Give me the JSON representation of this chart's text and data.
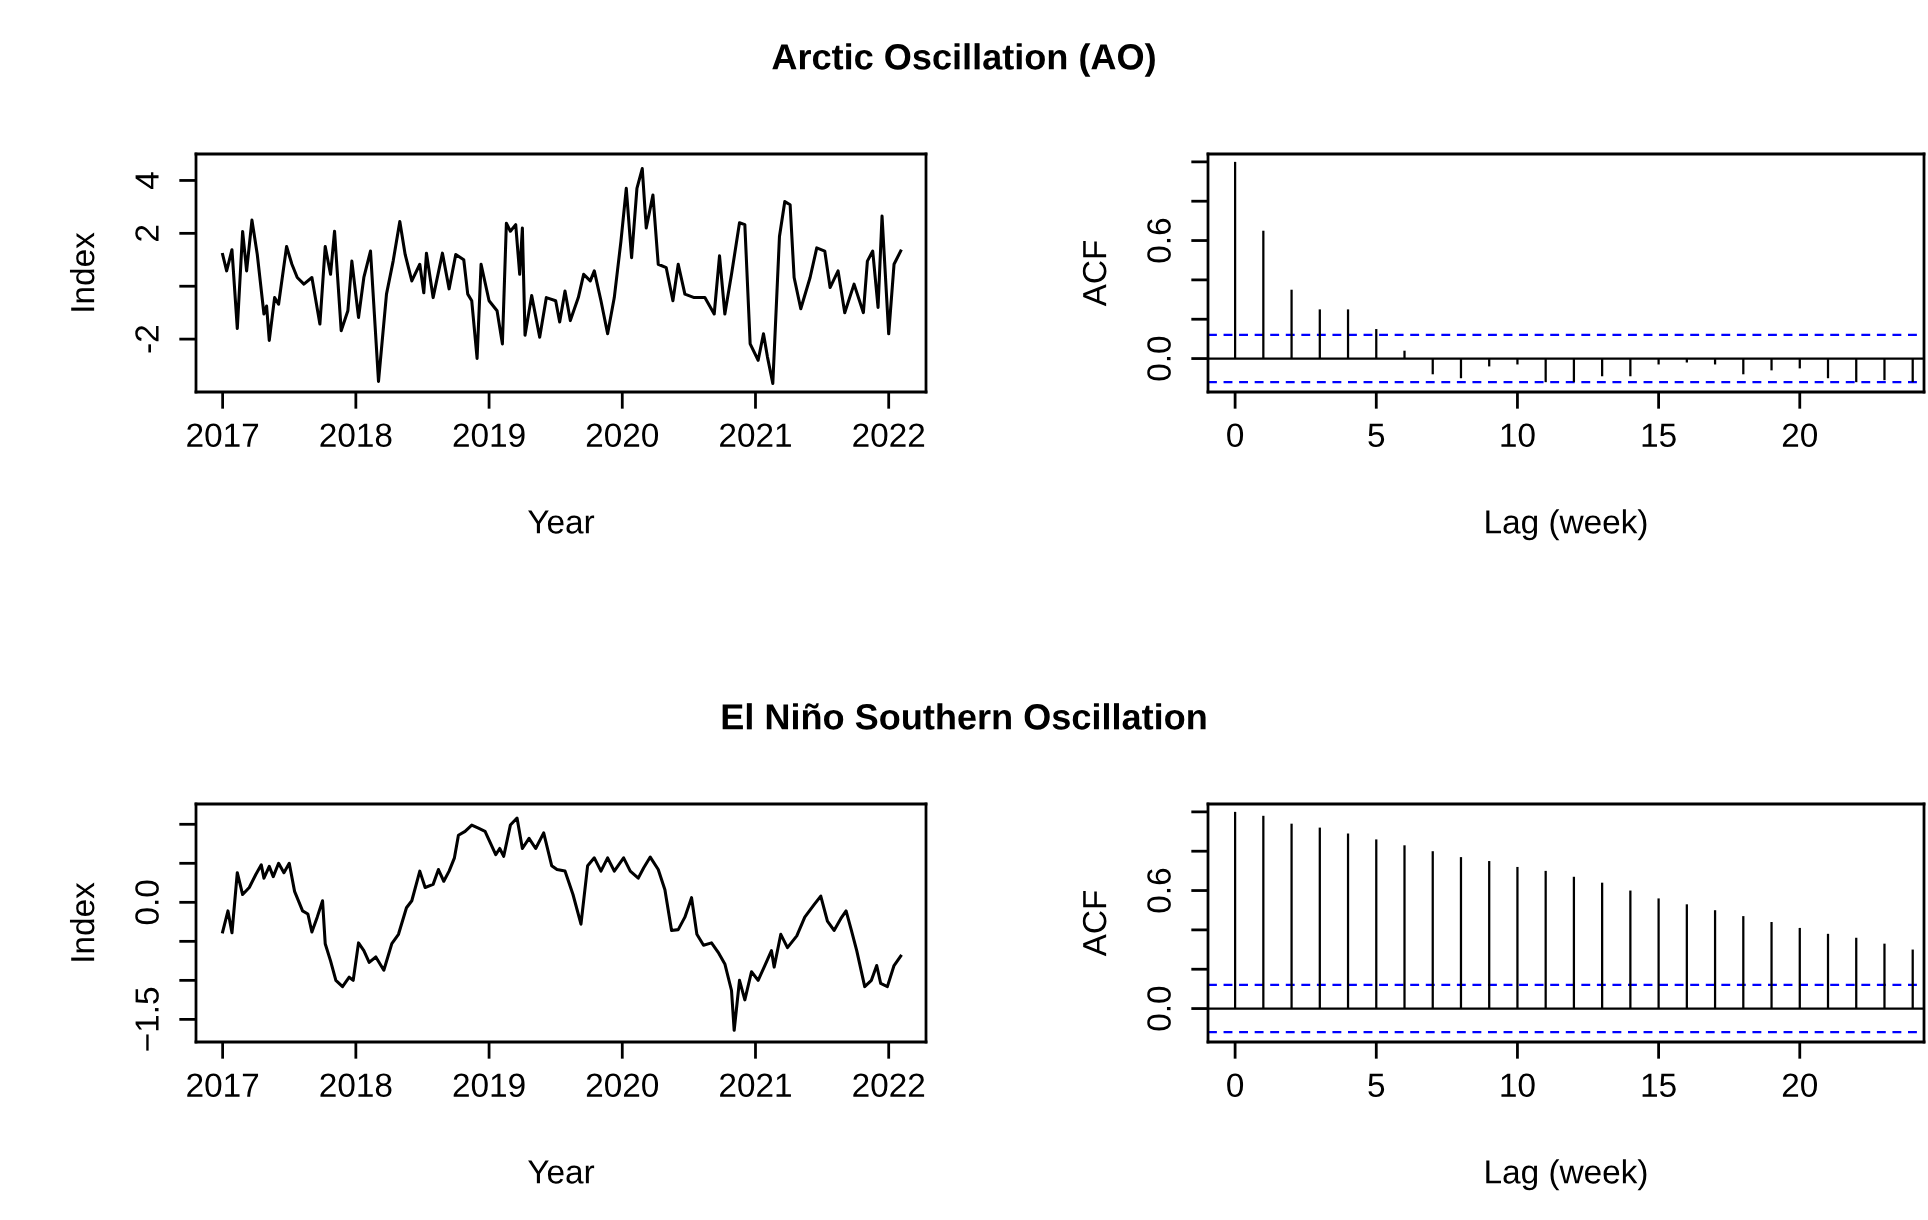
{
  "chart_data": [
    {
      "type": "line",
      "title": "Arctic Oscillation (AO)",
      "xlabel": "Year",
      "ylabel": "Index",
      "color": "#000000",
      "x": [
        2017.0,
        2017.03,
        2017.07,
        2017.11,
        2017.15,
        2017.18,
        2017.22,
        2017.26,
        2017.31,
        2017.33,
        2017.35,
        2017.39,
        2017.42,
        2017.48,
        2017.52,
        2017.56,
        2017.61,
        2017.67,
        2017.73,
        2017.77,
        2017.81,
        2017.84,
        2017.89,
        2017.94,
        2017.97,
        2018.02,
        2018.06,
        2018.11,
        2018.17,
        2018.23,
        2018.28,
        2018.33,
        2018.37,
        2018.42,
        2018.48,
        2018.51,
        2018.53,
        2018.58,
        2018.65,
        2018.7,
        2018.75,
        2018.81,
        2018.84,
        2018.87,
        2018.91,
        2018.94,
        2019.0,
        2019.06,
        2019.1,
        2019.13,
        2019.16,
        2019.2,
        2019.23,
        2019.25,
        2019.27,
        2019.32,
        2019.38,
        2019.43,
        2019.5,
        2019.53,
        2019.57,
        2019.61,
        2019.67,
        2019.71,
        2019.76,
        2019.79,
        2019.84,
        2019.89,
        2019.94,
        2019.99,
        2020.03,
        2020.07,
        2020.11,
        2020.15,
        2020.18,
        2020.23,
        2020.27,
        2020.33,
        2020.38,
        2020.42,
        2020.47,
        2020.54,
        2020.62,
        2020.69,
        2020.73,
        2020.77,
        2020.82,
        2020.88,
        2020.92,
        2020.96,
        2021.02,
        2021.06,
        2021.09,
        2021.13,
        2021.18,
        2021.22,
        2021.26,
        2021.29,
        2021.34,
        2021.41,
        2021.46,
        2021.52,
        2021.56,
        2021.62,
        2021.67,
        2021.74,
        2021.81,
        2021.84,
        2021.88,
        2021.92,
        2021.95,
        2022.0,
        2022.04,
        2022.09
      ],
      "values": [
        1.2,
        0.58,
        1.38,
        -1.6,
        2.07,
        0.58,
        2.5,
        1.2,
        -1.05,
        -0.75,
        -2.05,
        -0.43,
        -0.68,
        1.5,
        0.83,
        0.33,
        0.08,
        0.33,
        -1.43,
        1.5,
        0.45,
        2.08,
        -1.68,
        -0.93,
        0.95,
        -1.18,
        0.33,
        1.33,
        -3.6,
        -0.3,
        0.95,
        2.45,
        1.2,
        0.2,
        0.83,
        -0.25,
        1.25,
        -0.43,
        1.25,
        -0.1,
        1.2,
        1.0,
        -0.3,
        -0.55,
        -2.73,
        0.83,
        -0.55,
        -0.93,
        -2.18,
        2.38,
        2.08,
        2.33,
        0.45,
        2.2,
        -1.85,
        -0.35,
        -1.93,
        -0.43,
        -0.55,
        -1.35,
        -0.18,
        -1.3,
        -0.43,
        0.45,
        0.2,
        0.58,
        -0.55,
        -1.8,
        -0.43,
        1.7,
        3.7,
        1.08,
        3.7,
        4.45,
        2.2,
        3.45,
        0.83,
        0.7,
        -0.55,
        0.83,
        -0.3,
        -0.43,
        -0.43,
        -1.05,
        1.15,
        -1.05,
        0.45,
        2.4,
        2.33,
        -2.18,
        -2.8,
        -1.8,
        -2.68,
        -3.68,
        1.88,
        3.2,
        3.08,
        0.33,
        -0.85,
        0.33,
        1.45,
        1.33,
        -0.05,
        0.58,
        -1.0,
        0.08,
        -1.0,
        0.95,
        1.33,
        -0.8,
        2.65,
        -1.8,
        0.83,
        1.33
      ],
      "xlim": [
        2016.8,
        2022.28
      ],
      "ylim": [
        -4.0,
        5.0
      ],
      "xticks": [
        2017,
        2018,
        2019,
        2020,
        2021,
        2022
      ],
      "yticks": [
        -2,
        {
          "value": 0,
          "label": null
        },
        2,
        4
      ]
    },
    {
      "type": "bar",
      "xlabel": "Lag (week)",
      "ylabel": "ACF",
      "color": "#000000",
      "x": [
        0,
        1,
        2,
        3,
        4,
        5,
        6,
        7,
        8,
        9,
        10,
        11,
        12,
        13,
        14,
        15,
        16,
        17,
        18,
        19,
        20,
        21,
        22,
        23,
        24
      ],
      "values": [
        1.0,
        0.65,
        0.35,
        0.25,
        0.25,
        0.15,
        0.04,
        -0.08,
        -0.1,
        -0.04,
        -0.03,
        -0.12,
        -0.12,
        -0.09,
        -0.09,
        -0.03,
        -0.02,
        -0.03,
        -0.08,
        -0.06,
        -0.05,
        -0.1,
        -0.12,
        -0.11,
        -0.12
      ],
      "xlim": [
        -0.96,
        24.4
      ],
      "ylim": [
        -0.17,
        1.04
      ],
      "xticks": [
        0,
        5,
        10,
        15,
        20
      ],
      "yticks": [
        {
          "value": 0.0,
          "label": "0.0"
        },
        {
          "value": 0.2,
          "label": null
        },
        {
          "value": 0.4,
          "label": null
        },
        {
          "value": 0.6,
          "label": "0.6"
        },
        {
          "value": 0.8,
          "label": null
        },
        {
          "value": 1.0,
          "label": null
        }
      ],
      "ref_lines": [
        {
          "axis": "y",
          "value": 0,
          "color": "#000000",
          "line_style": "solid"
        },
        {
          "axis": "y",
          "value": 0.12,
          "color": "#0000ff",
          "line_style": "dashed"
        },
        {
          "axis": "y",
          "value": -0.12,
          "color": "#0000ff",
          "line_style": "dashed"
        }
      ]
    },
    {
      "type": "line",
      "title": "El Niño Southern Oscillation",
      "xlabel": "Year",
      "ylabel": "Index",
      "color": "#000000",
      "x": [
        2017.0,
        2017.04,
        2017.07,
        2017.11,
        2017.15,
        2017.2,
        2017.25,
        2017.29,
        2017.31,
        2017.35,
        2017.38,
        2017.42,
        2017.46,
        2017.5,
        2017.54,
        2017.6,
        2017.64,
        2017.67,
        2017.71,
        2017.75,
        2017.77,
        2017.81,
        2017.85,
        2017.9,
        2017.95,
        2017.98,
        2018.02,
        2018.06,
        2018.1,
        2018.15,
        2018.21,
        2018.27,
        2018.32,
        2018.38,
        2018.42,
        2018.48,
        2018.52,
        2018.58,
        2018.62,
        2018.66,
        2018.7,
        2018.74,
        2018.77,
        2018.82,
        2018.87,
        2018.92,
        2018.97,
        2019.05,
        2019.08,
        2019.11,
        2019.16,
        2019.21,
        2019.25,
        2019.3,
        2019.35,
        2019.41,
        2019.47,
        2019.51,
        2019.57,
        2019.63,
        2019.69,
        2019.74,
        2019.79,
        2019.84,
        2019.89,
        2019.94,
        2020.01,
        2020.06,
        2020.12,
        2020.16,
        2020.21,
        2020.27,
        2020.32,
        2020.37,
        2020.42,
        2020.47,
        2020.52,
        2020.56,
        2020.61,
        2020.67,
        2020.72,
        2020.77,
        2020.82,
        2020.84,
        2020.88,
        2020.92,
        2020.97,
        2021.02,
        2021.07,
        2021.12,
        2021.14,
        2021.19,
        2021.24,
        2021.31,
        2021.37,
        2021.44,
        2021.49,
        2021.54,
        2021.59,
        2021.64,
        2021.68,
        2021.72,
        2021.76,
        2021.82,
        2021.87,
        2021.91,
        2021.94,
        2021.99,
        2022.04,
        2022.09
      ],
      "values": [
        -0.38,
        -0.11,
        -0.39,
        0.38,
        0.1,
        0.19,
        0.36,
        0.48,
        0.31,
        0.46,
        0.33,
        0.5,
        0.38,
        0.5,
        0.14,
        -0.11,
        -0.15,
        -0.38,
        -0.19,
        0.02,
        -0.53,
        -0.75,
        -1.0,
        -1.08,
        -0.96,
        -1.0,
        -0.52,
        -0.62,
        -0.77,
        -0.7,
        -0.87,
        -0.53,
        -0.41,
        -0.07,
        0.02,
        0.4,
        0.19,
        0.23,
        0.42,
        0.27,
        0.4,
        0.57,
        0.86,
        0.91,
        0.99,
        0.95,
        0.91,
        0.61,
        0.69,
        0.59,
        0.99,
        1.08,
        0.69,
        0.82,
        0.69,
        0.89,
        0.47,
        0.42,
        0.4,
        0.1,
        -0.28,
        0.47,
        0.57,
        0.4,
        0.57,
        0.4,
        0.57,
        0.4,
        0.31,
        0.44,
        0.58,
        0.42,
        0.16,
        -0.36,
        -0.35,
        -0.19,
        0.06,
        -0.41,
        -0.55,
        -0.52,
        -0.64,
        -0.79,
        -1.13,
        -1.64,
        -1.0,
        -1.25,
        -0.89,
        -1.0,
        -0.81,
        -0.62,
        -0.83,
        -0.41,
        -0.58,
        -0.43,
        -0.19,
        -0.03,
        0.08,
        -0.24,
        -0.36,
        -0.21,
        -0.11,
        -0.36,
        -0.62,
        -1.08,
        -1.0,
        -0.81,
        -1.04,
        -1.08,
        -0.81,
        -0.69
      ],
      "xlim": [
        2016.8,
        2022.28
      ],
      "ylim": [
        -1.79,
        1.26
      ],
      "xticks": [
        2017,
        2018,
        2019,
        2020,
        2021,
        2022
      ],
      "yticks": [
        {
          "value": -1.5,
          "label": "−1.5"
        },
        {
          "value": -1.0,
          "label": null
        },
        {
          "value": -0.5,
          "label": null
        },
        {
          "value": 0.0,
          "label": "0.0"
        },
        {
          "value": 0.5,
          "label": null
        },
        {
          "value": 1.0,
          "label": null
        }
      ]
    },
    {
      "type": "bar",
      "xlabel": "Lag (week)",
      "ylabel": "ACF",
      "color": "#000000",
      "x": [
        0,
        1,
        2,
        3,
        4,
        5,
        6,
        7,
        8,
        9,
        10,
        11,
        12,
        13,
        14,
        15,
        16,
        17,
        18,
        19,
        20,
        21,
        22,
        23,
        24
      ],
      "values": [
        1.0,
        0.98,
        0.94,
        0.92,
        0.89,
        0.86,
        0.83,
        0.8,
        0.77,
        0.75,
        0.72,
        0.7,
        0.67,
        0.64,
        0.6,
        0.56,
        0.53,
        0.5,
        0.47,
        0.44,
        0.41,
        0.38,
        0.36,
        0.33,
        0.3
      ],
      "xlim": [
        -0.96,
        24.4
      ],
      "ylim": [
        -0.17,
        1.04
      ],
      "xticks": [
        0,
        5,
        10,
        15,
        20
      ],
      "yticks": [
        {
          "value": 0.0,
          "label": "0.0"
        },
        {
          "value": 0.2,
          "label": null
        },
        {
          "value": 0.4,
          "label": null
        },
        {
          "value": 0.6,
          "label": "0.6"
        },
        {
          "value": 0.8,
          "label": null
        },
        {
          "value": 1.0,
          "label": null
        }
      ],
      "ref_lines": [
        {
          "axis": "y",
          "value": 0,
          "color": "#000000",
          "line_style": "solid"
        },
        {
          "axis": "y",
          "value": 0.12,
          "color": "#0000ff",
          "line_style": "dashed"
        },
        {
          "axis": "y",
          "value": -0.12,
          "color": "#0000ff",
          "line_style": "dashed"
        }
      ]
    }
  ]
}
